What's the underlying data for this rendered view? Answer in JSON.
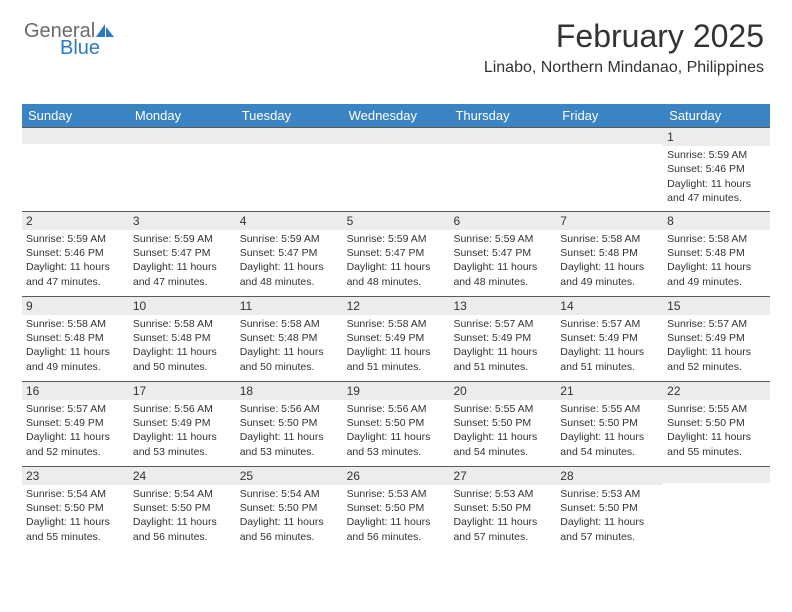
{
  "logo": {
    "text1": "General",
    "text2": "Blue"
  },
  "header": {
    "month_title": "February 2025",
    "location": "Linabo, Northern Mindanao, Philippines"
  },
  "colors": {
    "header_bg": "#3b84c4",
    "header_text": "#ffffff",
    "num_row_bg": "#ececec",
    "border": "#5a5a5a",
    "text": "#333333",
    "logo_gray": "#6a6a6a",
    "logo_blue": "#2b7bbf"
  },
  "day_headers": [
    "Sunday",
    "Monday",
    "Tuesday",
    "Wednesday",
    "Thursday",
    "Friday",
    "Saturday"
  ],
  "weeks": [
    [
      {
        "num": "",
        "sunrise": "",
        "sunset": "",
        "daylight": ""
      },
      {
        "num": "",
        "sunrise": "",
        "sunset": "",
        "daylight": ""
      },
      {
        "num": "",
        "sunrise": "",
        "sunset": "",
        "daylight": ""
      },
      {
        "num": "",
        "sunrise": "",
        "sunset": "",
        "daylight": ""
      },
      {
        "num": "",
        "sunrise": "",
        "sunset": "",
        "daylight": ""
      },
      {
        "num": "",
        "sunrise": "",
        "sunset": "",
        "daylight": ""
      },
      {
        "num": "1",
        "sunrise": "Sunrise: 5:59 AM",
        "sunset": "Sunset: 5:46 PM",
        "daylight": "Daylight: 11 hours and 47 minutes."
      }
    ],
    [
      {
        "num": "2",
        "sunrise": "Sunrise: 5:59 AM",
        "sunset": "Sunset: 5:46 PM",
        "daylight": "Daylight: 11 hours and 47 minutes."
      },
      {
        "num": "3",
        "sunrise": "Sunrise: 5:59 AM",
        "sunset": "Sunset: 5:47 PM",
        "daylight": "Daylight: 11 hours and 47 minutes."
      },
      {
        "num": "4",
        "sunrise": "Sunrise: 5:59 AM",
        "sunset": "Sunset: 5:47 PM",
        "daylight": "Daylight: 11 hours and 48 minutes."
      },
      {
        "num": "5",
        "sunrise": "Sunrise: 5:59 AM",
        "sunset": "Sunset: 5:47 PM",
        "daylight": "Daylight: 11 hours and 48 minutes."
      },
      {
        "num": "6",
        "sunrise": "Sunrise: 5:59 AM",
        "sunset": "Sunset: 5:47 PM",
        "daylight": "Daylight: 11 hours and 48 minutes."
      },
      {
        "num": "7",
        "sunrise": "Sunrise: 5:58 AM",
        "sunset": "Sunset: 5:48 PM",
        "daylight": "Daylight: 11 hours and 49 minutes."
      },
      {
        "num": "8",
        "sunrise": "Sunrise: 5:58 AM",
        "sunset": "Sunset: 5:48 PM",
        "daylight": "Daylight: 11 hours and 49 minutes."
      }
    ],
    [
      {
        "num": "9",
        "sunrise": "Sunrise: 5:58 AM",
        "sunset": "Sunset: 5:48 PM",
        "daylight": "Daylight: 11 hours and 49 minutes."
      },
      {
        "num": "10",
        "sunrise": "Sunrise: 5:58 AM",
        "sunset": "Sunset: 5:48 PM",
        "daylight": "Daylight: 11 hours and 50 minutes."
      },
      {
        "num": "11",
        "sunrise": "Sunrise: 5:58 AM",
        "sunset": "Sunset: 5:48 PM",
        "daylight": "Daylight: 11 hours and 50 minutes."
      },
      {
        "num": "12",
        "sunrise": "Sunrise: 5:58 AM",
        "sunset": "Sunset: 5:49 PM",
        "daylight": "Daylight: 11 hours and 51 minutes."
      },
      {
        "num": "13",
        "sunrise": "Sunrise: 5:57 AM",
        "sunset": "Sunset: 5:49 PM",
        "daylight": "Daylight: 11 hours and 51 minutes."
      },
      {
        "num": "14",
        "sunrise": "Sunrise: 5:57 AM",
        "sunset": "Sunset: 5:49 PM",
        "daylight": "Daylight: 11 hours and 51 minutes."
      },
      {
        "num": "15",
        "sunrise": "Sunrise: 5:57 AM",
        "sunset": "Sunset: 5:49 PM",
        "daylight": "Daylight: 11 hours and 52 minutes."
      }
    ],
    [
      {
        "num": "16",
        "sunrise": "Sunrise: 5:57 AM",
        "sunset": "Sunset: 5:49 PM",
        "daylight": "Daylight: 11 hours and 52 minutes."
      },
      {
        "num": "17",
        "sunrise": "Sunrise: 5:56 AM",
        "sunset": "Sunset: 5:49 PM",
        "daylight": "Daylight: 11 hours and 53 minutes."
      },
      {
        "num": "18",
        "sunrise": "Sunrise: 5:56 AM",
        "sunset": "Sunset: 5:50 PM",
        "daylight": "Daylight: 11 hours and 53 minutes."
      },
      {
        "num": "19",
        "sunrise": "Sunrise: 5:56 AM",
        "sunset": "Sunset: 5:50 PM",
        "daylight": "Daylight: 11 hours and 53 minutes."
      },
      {
        "num": "20",
        "sunrise": "Sunrise: 5:55 AM",
        "sunset": "Sunset: 5:50 PM",
        "daylight": "Daylight: 11 hours and 54 minutes."
      },
      {
        "num": "21",
        "sunrise": "Sunrise: 5:55 AM",
        "sunset": "Sunset: 5:50 PM",
        "daylight": "Daylight: 11 hours and 54 minutes."
      },
      {
        "num": "22",
        "sunrise": "Sunrise: 5:55 AM",
        "sunset": "Sunset: 5:50 PM",
        "daylight": "Daylight: 11 hours and 55 minutes."
      }
    ],
    [
      {
        "num": "23",
        "sunrise": "Sunrise: 5:54 AM",
        "sunset": "Sunset: 5:50 PM",
        "daylight": "Daylight: 11 hours and 55 minutes."
      },
      {
        "num": "24",
        "sunrise": "Sunrise: 5:54 AM",
        "sunset": "Sunset: 5:50 PM",
        "daylight": "Daylight: 11 hours and 56 minutes."
      },
      {
        "num": "25",
        "sunrise": "Sunrise: 5:54 AM",
        "sunset": "Sunset: 5:50 PM",
        "daylight": "Daylight: 11 hours and 56 minutes."
      },
      {
        "num": "26",
        "sunrise": "Sunrise: 5:53 AM",
        "sunset": "Sunset: 5:50 PM",
        "daylight": "Daylight: 11 hours and 56 minutes."
      },
      {
        "num": "27",
        "sunrise": "Sunrise: 5:53 AM",
        "sunset": "Sunset: 5:50 PM",
        "daylight": "Daylight: 11 hours and 57 minutes."
      },
      {
        "num": "28",
        "sunrise": "Sunrise: 5:53 AM",
        "sunset": "Sunset: 5:50 PM",
        "daylight": "Daylight: 11 hours and 57 minutes."
      },
      {
        "num": "",
        "sunrise": "",
        "sunset": "",
        "daylight": ""
      }
    ]
  ]
}
